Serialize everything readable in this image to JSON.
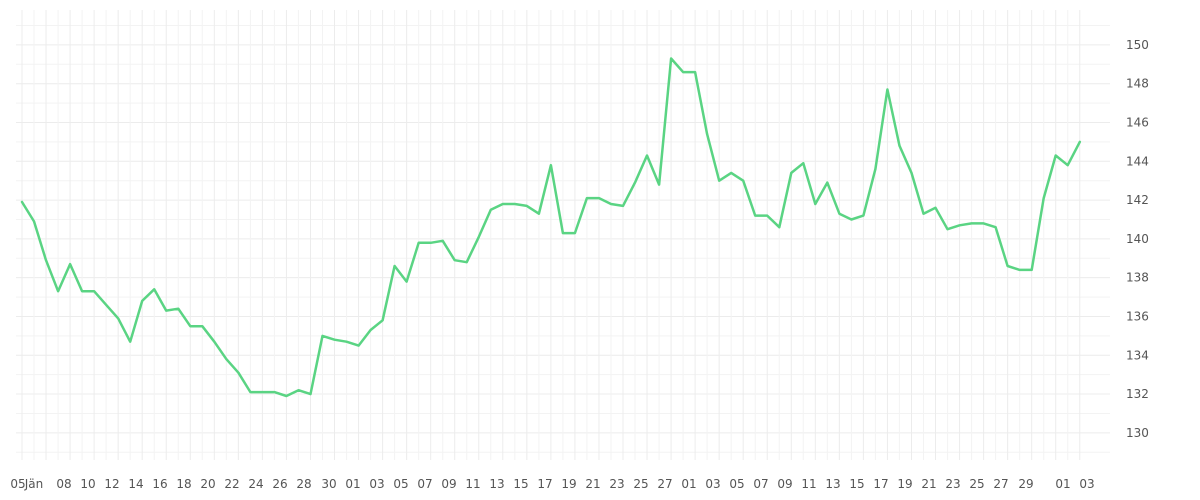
{
  "chart_data": {
    "type": "line",
    "title": "",
    "xlabel": "",
    "ylabel": "",
    "ylim": [
      128.6,
      151.8
    ],
    "y_axis_position": "right",
    "y_ticks": [
      130,
      132,
      134,
      136,
      138,
      140,
      142,
      144,
      146,
      148,
      150
    ],
    "grid": true,
    "legend": "none",
    "line_color": "#5ad483",
    "x_tick_labels": [
      "05",
      "Jän",
      "08",
      "10",
      "12",
      "14",
      "16",
      "18",
      "20",
      "22",
      "24",
      "26",
      "28",
      "30",
      "01",
      "03",
      "05",
      "07",
      "09",
      "11",
      "13",
      "15",
      "17",
      "19",
      "21",
      "23",
      "25",
      "27",
      "01",
      "03",
      "05",
      "07",
      "09",
      "11",
      "13",
      "15",
      "17",
      "19",
      "21",
      "23",
      "25",
      "27",
      "29",
      "01",
      "03"
    ],
    "series": [
      {
        "values": [
          141.9,
          140.9,
          138.9,
          137.3,
          138.7,
          137.3,
          137.3,
          136.6,
          135.9,
          134.7,
          136.8,
          137.4,
          136.3,
          136.4,
          135.5,
          135.5,
          134.7,
          133.8,
          133.1,
          132.1,
          132.1,
          132.1,
          131.9,
          132.2,
          132.0,
          135.0,
          134.8,
          134.7,
          134.5,
          135.3,
          135.8,
          138.6,
          137.8,
          139.8,
          139.8,
          139.9,
          138.9,
          138.8,
          140.1,
          141.5,
          141.8,
          141.8,
          141.7,
          141.3,
          143.8,
          140.3,
          140.3,
          142.1,
          142.1,
          141.8,
          141.7,
          142.9,
          144.3,
          142.8,
          149.3,
          148.6,
          148.6,
          145.4,
          143.0,
          143.4,
          143.0,
          141.2,
          141.2,
          140.6,
          143.4,
          143.9,
          141.8,
          142.9,
          141.3,
          141.0,
          141.2,
          143.6,
          147.7,
          144.8,
          143.4,
          141.3,
          141.6,
          140.5,
          140.7,
          140.8,
          140.8,
          140.6,
          138.6,
          138.4,
          138.4,
          142.1,
          144.3,
          143.8,
          145.0
        ]
      }
    ]
  }
}
